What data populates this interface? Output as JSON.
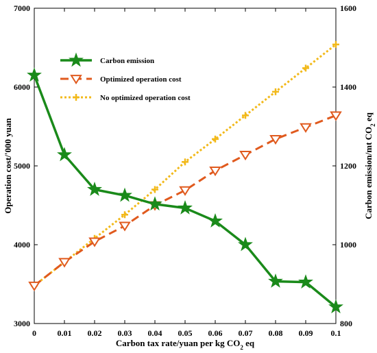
{
  "chart_data": {
    "type": "line",
    "x": [
      0,
      0.01,
      0.02,
      0.03,
      0.04,
      0.05,
      0.06,
      0.07,
      0.08,
      0.09,
      0.1
    ],
    "x_tick_labels": [
      "0",
      "0.01",
      "0.02",
      "0.03",
      "0.04",
      "0.05",
      "0.06",
      "0.07",
      "0.08",
      "0.09",
      "0.1"
    ],
    "xlabel": "Carbon tax rate/yuan per kg CO",
    "xlabel_sub": "2",
    "xlabel_suffix": " eq",
    "ylabel_left": "Operation cost/'000 yuan",
    "ylabel_right": "Carbon emission/mt CO",
    "ylabel_right_sub": "2",
    "ylabel_right_suffix": " eq",
    "xlim": [
      0,
      0.1
    ],
    "ylim_left": [
      3000,
      7000
    ],
    "ylim_right": [
      800,
      1600
    ],
    "y_left_ticks": [
      "3000",
      "4000",
      "5000",
      "6000",
      "7000"
    ],
    "y_right_ticks": [
      "800",
      "1000",
      "1200",
      "1400",
      "1600"
    ],
    "legend_position": "upper-left",
    "series": [
      {
        "name": "Carbon emission",
        "axis": "right",
        "color": "#1a8a1a",
        "marker": "star",
        "style": "solid",
        "values": [
          1430,
          1228,
          1140,
          1125,
          1103,
          1093,
          1060,
          1000,
          907,
          905,
          842
        ]
      },
      {
        "name": "Optimized operation cost",
        "axis": "left",
        "color": "#e05a1e",
        "marker": "triangle-down",
        "style": "dashed",
        "values": [
          3480,
          3780,
          4040,
          4240,
          4500,
          4690,
          4940,
          5140,
          5340,
          5490,
          5640
        ]
      },
      {
        "name": "No optimized operation cost",
        "axis": "left",
        "color": "#f2b91a",
        "marker": "plus",
        "style": "dotted",
        "values": [
          3480,
          3780,
          4080,
          4380,
          4700,
          5050,
          5340,
          5640,
          5940,
          6240,
          6540
        ]
      }
    ]
  }
}
